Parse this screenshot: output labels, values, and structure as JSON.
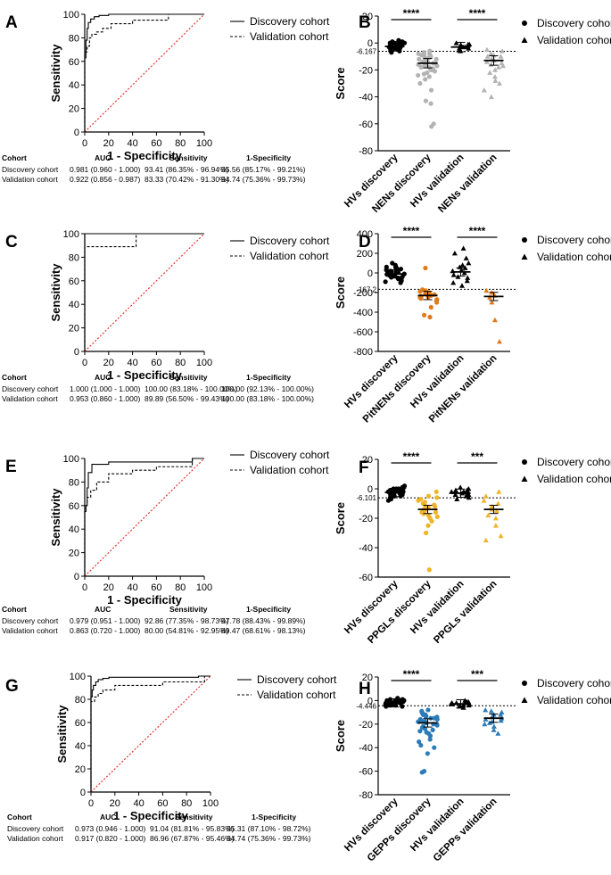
{
  "colors": {
    "black": "#000000",
    "grey": "#b3b3b3",
    "orange": "#e07b1a",
    "gold": "#f0b429",
    "blue": "#2b7bb9",
    "diagonal": "#e0221e"
  },
  "chart_data": [
    {
      "type": "line",
      "letter": "A",
      "xlabel": "1 - Specificity",
      "ylabel": "Sensitivity",
      "xlim": [
        0,
        100
      ],
      "ylim": [
        0,
        100
      ],
      "xticks": [
        "0",
        "20",
        "40",
        "60",
        "80",
        "100"
      ],
      "yticks": [
        "0",
        "20",
        "40",
        "60",
        "80",
        "100"
      ],
      "series": [
        {
          "name": "Discovery cohort",
          "style": "solid",
          "x": [
            0,
            0,
            1,
            1,
            2,
            2,
            3,
            3,
            5,
            5,
            8,
            8,
            12,
            12,
            20,
            20,
            60,
            60,
            100
          ],
          "y": [
            0,
            63,
            63,
            78,
            78,
            88,
            88,
            93,
            93,
            96,
            96,
            98,
            98,
            99,
            99,
            100,
            100,
            100,
            100
          ]
        },
        {
          "name": "Validation cohort",
          "style": "dashed",
          "x": [
            0,
            0,
            2,
            2,
            4,
            4,
            6,
            6,
            10,
            10,
            15,
            15,
            22,
            22,
            40,
            40,
            70,
            70,
            100
          ],
          "y": [
            0,
            68,
            68,
            73,
            73,
            80,
            80,
            83,
            83,
            85,
            85,
            88,
            88,
            92,
            92,
            95,
            95,
            100,
            100
          ]
        }
      ],
      "legend": [
        "Discovery cohort",
        "Validation cohort"
      ],
      "table": {
        "headers": [
          "Cohort",
          "AUC",
          "Sensitivity",
          "1-Specificity"
        ],
        "rows": [
          [
            "Discovery cohort",
            "0.981 (0.960 - 1.000)",
            "93.41 (86.35% - 96.94%)",
            "95.56 (85.17% - 99.21%)"
          ],
          [
            "Validation cohort",
            "0.922 (0.856 - 0.987)",
            "83.33 (70.42% - 91.30%)",
            "94.74 (75.36% - 99.73%)"
          ]
        ]
      }
    },
    {
      "type": "scatter",
      "letter": "B",
      "ylabel": "Score",
      "ylim": [
        -80,
        20
      ],
      "yticks": [
        "20",
        "0",
        "-20",
        "-40",
        "-60",
        "-80"
      ],
      "cutoff": -6.167,
      "cutoff_label": "-6.167",
      "categories": [
        "HVs discovery",
        "NENs discovery",
        "HVs validation",
        "NENs validation"
      ],
      "group_colors": [
        "black",
        "grey",
        "black",
        "grey"
      ],
      "group_shapes": [
        "circle",
        "circle",
        "triangle",
        "triangle"
      ],
      "values": [
        [
          -1,
          -2,
          0,
          1,
          -3,
          -4,
          -2,
          -1,
          2,
          -5,
          -3,
          0,
          -6,
          -2,
          -1,
          -4,
          -3,
          1,
          -2,
          -5,
          0,
          -1,
          -7,
          -3,
          -2,
          -4,
          -6,
          -1,
          0,
          -3
        ],
        [
          -8,
          -10,
          -12,
          -14,
          -15,
          -16,
          -18,
          -20,
          -9,
          -11,
          -13,
          -17,
          -19,
          -22,
          -25,
          -6,
          -7,
          -13,
          -14,
          -16,
          -18,
          -21,
          -24,
          -27,
          -30,
          -35,
          -43,
          -45,
          -60,
          -62,
          -12,
          -15,
          -10,
          -11,
          -8,
          -20,
          -23,
          -17,
          -9,
          -14
        ],
        [
          -1,
          -2,
          -3,
          -4,
          -2,
          -5,
          0,
          -3,
          -1,
          -4,
          -6,
          -2
        ],
        [
          -5,
          -8,
          -10,
          -12,
          -14,
          -15,
          -17,
          -18,
          -20,
          -22,
          -25,
          -28,
          -30,
          -35,
          -40,
          -10,
          -13,
          -16,
          -6,
          -9
        ]
      ],
      "means": [
        -2.5,
        -15,
        -3,
        -13
      ],
      "sig": [
        {
          "from": 0,
          "to": 1,
          "label": "****"
        },
        {
          "from": 2,
          "to": 3,
          "label": "****"
        }
      ],
      "legend": [
        "Discovery cohort",
        "Validation cohort"
      ]
    },
    {
      "type": "line",
      "letter": "C",
      "xlabel": "1 - Specificity",
      "ylabel": "Sensitivity",
      "xlim": [
        0,
        100
      ],
      "ylim": [
        0,
        100
      ],
      "xticks": [
        "0",
        "20",
        "40",
        "60",
        "80",
        "100"
      ],
      "yticks": [
        "0",
        "20",
        "40",
        "60",
        "80",
        "100"
      ],
      "series": [
        {
          "name": "Discovery cohort",
          "style": "solid",
          "x": [
            0,
            0,
            100
          ],
          "y": [
            0,
            100,
            100
          ]
        },
        {
          "name": "Validation cohort",
          "style": "dashed",
          "x": [
            0,
            0,
            43,
            43,
            100
          ],
          "y": [
            0,
            89,
            89,
            100,
            100
          ]
        }
      ],
      "legend": [
        "Discovery cohort",
        "Validation cohort"
      ],
      "table": {
        "headers": [
          "Cohort",
          "AUC",
          "Sensitivity",
          "1-Specificity"
        ],
        "rows": [
          [
            "Discovery cohort",
            "1.000 (1.000 - 1.000)",
            "100.00 (83.18% - 100.00%)",
            "100.00 (92.13% - 100.00%)"
          ],
          [
            "Validation cohort",
            "0.953 (0.860 - 1.000)",
            "89.89 (56.50% - 99.43%)",
            "100.00 (83.18% - 100.00%)"
          ]
        ]
      }
    },
    {
      "type": "scatter",
      "letter": "D",
      "ylabel": "Score",
      "ylim": [
        -800,
        400
      ],
      "yticks": [
        "400",
        "200",
        "0",
        "-200",
        "-400",
        "-600",
        "-800"
      ],
      "cutoff": -167.2,
      "cutoff_label": "-167.2",
      "categories": [
        "HVs discovery",
        "PitNENs discovery",
        "HVs validation",
        "PitNENs validation"
      ],
      "group_colors": [
        "black",
        "orange",
        "black",
        "orange"
      ],
      "group_shapes": [
        "circle",
        "circle",
        "triangle",
        "triangle"
      ],
      "values": [
        [
          20,
          -10,
          50,
          -40,
          80,
          0,
          -60,
          30,
          -20,
          60,
          -90,
          10,
          -30,
          40,
          -50,
          100,
          -80,
          5,
          -15,
          70,
          -70,
          25,
          -45,
          55,
          -100,
          15,
          -25,
          35,
          -55,
          -5
        ],
        [
          -200,
          -220,
          -240,
          -180,
          -260,
          -230,
          -210,
          -250,
          -270,
          -300,
          -190,
          -215,
          -245,
          -225,
          -235,
          -205,
          -280,
          -350,
          -430,
          -450,
          -170,
          50
        ],
        [
          -50,
          0,
          50,
          100,
          150,
          -100,
          20,
          -20,
          80,
          -80,
          200,
          -130,
          30,
          -40,
          60,
          250
        ],
        [
          -180,
          -230,
          -250,
          -300,
          -200,
          -480,
          -700
        ]
      ],
      "means": [
        -10,
        -230,
        10,
        -240
      ],
      "sig": [
        {
          "from": 0,
          "to": 1,
          "label": "****"
        },
        {
          "from": 2,
          "to": 3,
          "label": "****"
        }
      ],
      "legend": [
        "Discovery cohort",
        "Validation cohort"
      ]
    },
    {
      "type": "line",
      "letter": "E",
      "xlabel": "1 - Specificity",
      "ylabel": "Sensitivity",
      "xlim": [
        0,
        100
      ],
      "ylim": [
        0,
        100
      ],
      "xticks": [
        "0",
        "20",
        "40",
        "60",
        "80",
        "100"
      ],
      "yticks": [
        "0",
        "20",
        "40",
        "60",
        "80",
        "100"
      ],
      "series": [
        {
          "name": "Discovery cohort",
          "style": "solid",
          "x": [
            0,
            0,
            1,
            1,
            2,
            2,
            3,
            3,
            6,
            6,
            20,
            20,
            90,
            90,
            100
          ],
          "y": [
            0,
            55,
            55,
            60,
            60,
            75,
            75,
            88,
            88,
            95,
            95,
            97,
            97,
            100,
            100
          ]
        },
        {
          "name": "Validation cohort",
          "style": "dashed",
          "x": [
            0,
            0,
            2,
            2,
            5,
            5,
            10,
            10,
            20,
            20,
            40,
            40,
            60,
            60,
            90,
            90,
            100
          ],
          "y": [
            0,
            60,
            60,
            67,
            67,
            73,
            73,
            80,
            80,
            87,
            87,
            90,
            90,
            93,
            93,
            100,
            100
          ]
        }
      ],
      "legend": [
        "Discovery cohort",
        "Validation cohort"
      ],
      "table": {
        "headers": [
          "Cohort",
          "AUC",
          "Sensitivity",
          "1-Specificity"
        ],
        "rows": [
          [
            "Discovery cohort",
            "0.979 (0.951 - 1.000)",
            "92.86 (77.35% - 98.73%)",
            "97.78 (88.43% - 99.89%)"
          ],
          [
            "Validation cohort",
            "0.863 (0.720 - 1.000)",
            "80.00 (54.81% - 92.95%)",
            "89.47 (68.61% - 98.13%)"
          ]
        ]
      }
    },
    {
      "type": "scatter",
      "letter": "F",
      "ylabel": "Score",
      "ylim": [
        -60,
        20
      ],
      "yticks": [
        "20",
        "0",
        "-20",
        "-40",
        "-60"
      ],
      "cutoff": -6.101,
      "cutoff_label": "-6.101",
      "categories": [
        "HVs discovery",
        "PPGLs discovery",
        "HVs validation",
        "PPGLs validation"
      ],
      "group_colors": [
        "black",
        "gold",
        "black",
        "gold"
      ],
      "group_shapes": [
        "circle",
        "circle",
        "triangle",
        "triangle"
      ],
      "values": [
        [
          -1,
          -2,
          0,
          1,
          -3,
          -4,
          -2,
          -1,
          2,
          -5,
          -3,
          0,
          -6,
          -2,
          -1,
          -4,
          -3,
          1,
          -2,
          -5,
          0,
          -1,
          -7,
          -3,
          -2,
          -4,
          -8,
          -1,
          0,
          -3
        ],
        [
          -5,
          -8,
          -10,
          -12,
          -14,
          -15,
          -16,
          -18,
          -20,
          -9,
          -11,
          -13,
          -17,
          -22,
          -25,
          -30,
          -55,
          -6,
          -7,
          -12,
          -14,
          -16,
          -19,
          -2
        ],
        [
          -1,
          -2,
          -3,
          -4,
          -2,
          -5,
          0,
          -3,
          -1,
          -4,
          -6,
          -2,
          -7,
          1
        ],
        [
          -5,
          -10,
          -12,
          -14,
          -15,
          -18,
          -20,
          -25,
          -32,
          -35,
          -8,
          -2
        ]
      ],
      "means": [
        -2.5,
        -14,
        -3,
        -14
      ],
      "sig": [
        {
          "from": 0,
          "to": 1,
          "label": "****"
        },
        {
          "from": 2,
          "to": 3,
          "label": "***"
        }
      ],
      "legend": [
        "Discovery cohort",
        "Validation cohort"
      ]
    },
    {
      "type": "line",
      "letter": "G",
      "xlabel": "1 - Specificity",
      "ylabel": "Sensitivity",
      "xlim": [
        0,
        100
      ],
      "ylim": [
        0,
        100
      ],
      "xticks": [
        "0",
        "20",
        "40",
        "60",
        "80",
        "100"
      ],
      "yticks": [
        "0",
        "20",
        "40",
        "60",
        "80",
        "100"
      ],
      "series": [
        {
          "name": "Discovery cohort",
          "style": "solid",
          "x": [
            0,
            0,
            1,
            1,
            2,
            2,
            4,
            4,
            6,
            6,
            10,
            10,
            15,
            15,
            90,
            90,
            100
          ],
          "y": [
            0,
            82,
            82,
            88,
            88,
            92,
            92,
            95,
            95,
            97,
            97,
            98,
            98,
            99,
            99,
            100,
            100
          ]
        },
        {
          "name": "Validation cohort",
          "style": "dashed",
          "x": [
            0,
            0,
            3,
            3,
            6,
            6,
            10,
            10,
            20,
            20,
            60,
            60,
            95,
            95,
            100
          ],
          "y": [
            0,
            78,
            78,
            82,
            82,
            85,
            85,
            88,
            88,
            92,
            92,
            95,
            95,
            100,
            100
          ]
        }
      ],
      "legend": [
        "Discovery cohort",
        "Validation cohort"
      ],
      "table": {
        "headers": [
          "Cohort",
          "AUC",
          "Sensitivity",
          "1-Specificity"
        ],
        "rows": [
          [
            "Discovery cohort",
            "0.973 (0.946 - 1.000)",
            "91.04 (81.81% - 95.83%)",
            "95.31 (87.10% - 98.72%)"
          ],
          [
            "Validation cohort",
            "0.917 (0.820 - 1.000)",
            "86.96 (67.87% - 95.46%)",
            "94.74 (75.36% - 99.73%)"
          ]
        ]
      }
    },
    {
      "type": "scatter",
      "letter": "H",
      "ylabel": "Score",
      "ylim": [
        -80,
        20
      ],
      "yticks": [
        "20",
        "0",
        "-20",
        "-40",
        "-60",
        "-80"
      ],
      "cutoff": -4.446,
      "cutoff_label": "-4.446",
      "categories": [
        "HVs discovery",
        "GEPPs discovery",
        "HVs validation",
        "GEPPs validation"
      ],
      "group_colors": [
        "black",
        "blue",
        "black",
        "blue"
      ],
      "group_shapes": [
        "circle",
        "circle",
        "triangle",
        "triangle"
      ],
      "values": [
        [
          -1,
          -2,
          0,
          1,
          -3,
          -4,
          -2,
          -1,
          2,
          -5,
          -3,
          0,
          -4,
          -2,
          -1,
          -4,
          -3,
          1,
          -2,
          -5,
          0,
          -1,
          -3,
          -3,
          -2,
          -4,
          -1,
          0,
          -3,
          -2
        ],
        [
          -8,
          -10,
          -12,
          -14,
          -15,
          -16,
          -18,
          -20,
          -22,
          -25,
          -28,
          -30,
          -35,
          -40,
          -45,
          -60,
          -61,
          -12,
          -14,
          -16,
          -18,
          -19,
          -21,
          -23,
          -26,
          -9,
          -11,
          -13,
          -17,
          -15,
          -20,
          -24,
          -27,
          -33,
          -38
        ],
        [
          -1,
          -2,
          -3,
          -4,
          -2,
          -5,
          0,
          -3,
          -1,
          -4,
          -6,
          -2,
          -3
        ],
        [
          -8,
          -10,
          -12,
          -14,
          -15,
          -17,
          -18,
          -20,
          -22,
          -25,
          -28,
          -12,
          -16,
          -9,
          -19
        ]
      ],
      "means": [
        -2,
        -19,
        -2.8,
        -15
      ],
      "sig": [
        {
          "from": 0,
          "to": 1,
          "label": "****"
        },
        {
          "from": 2,
          "to": 3,
          "label": "***"
        }
      ],
      "legend": [
        "Discovery cohort",
        "Validation cohort"
      ]
    }
  ]
}
